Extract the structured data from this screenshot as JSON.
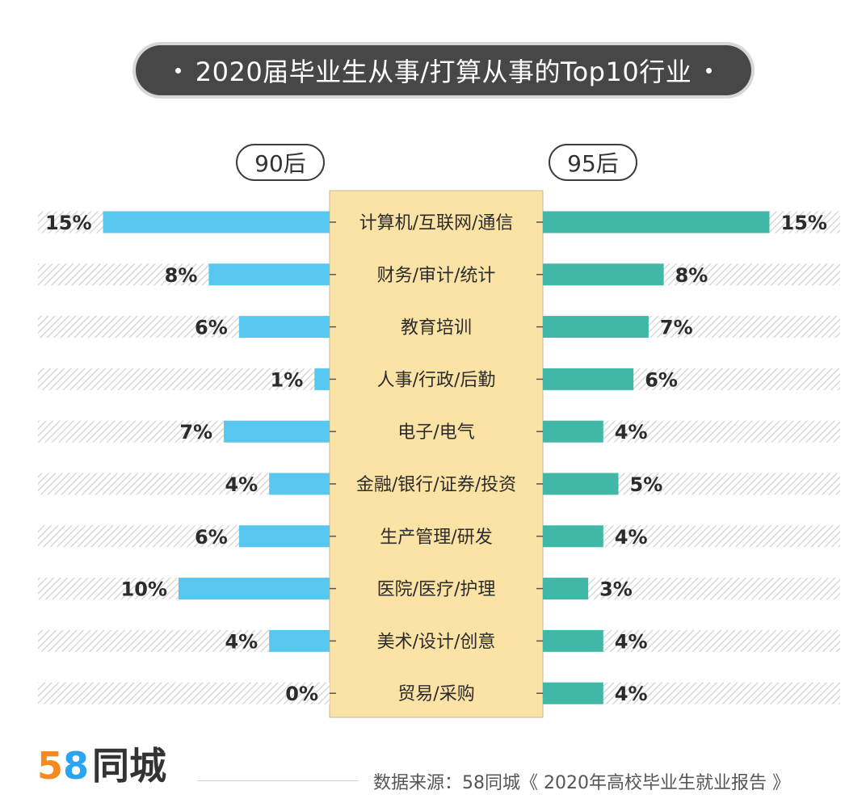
{
  "title": "2020届毕业生从事/打算从事的Top10行业",
  "groups": {
    "left": "90后",
    "right": "95后"
  },
  "chart_data": {
    "type": "bar",
    "orientation": "horizontal-butterfly",
    "categories": [
      "计算机/互联网/通信",
      "财务/审计/统计",
      "教育培训",
      "人事/行政/后勤",
      "电子/电气",
      "金融/银行/证券/投资",
      "生产管理/研发",
      "医院/医疗/护理",
      "美术/设计/创意",
      "贸易/采购"
    ],
    "series": [
      {
        "name": "90后",
        "values": [
          15,
          8,
          6,
          1,
          7,
          4,
          6,
          10,
          4,
          0
        ],
        "labels": [
          "15%",
          "8%",
          "6%",
          "1%",
          "7%",
          "4%",
          "6%",
          "10%",
          "4%",
          "0%"
        ]
      },
      {
        "name": "95后",
        "values": [
          15,
          8,
          7,
          6,
          4,
          5,
          4,
          3,
          4,
          4
        ],
        "labels": [
          "15%",
          "8%",
          "7%",
          "6%",
          "4%",
          "5%",
          "4%",
          "3%",
          "4%",
          "4%"
        ]
      }
    ],
    "unit": "%",
    "xlim": [
      0,
      15
    ],
    "colors": {
      "left_bar": "#58c7f0",
      "right_bar": "#41b8a7",
      "category_panel": "#fbe3a5",
      "hatch": "#d8d8d8",
      "text": "#2b2b2b"
    }
  },
  "footer": {
    "logo_digit_5": "5",
    "logo_digit_8": "8",
    "logo_text": "同城",
    "source": "数据来源：58同城《 2020年高校毕业生就业报告 》"
  }
}
